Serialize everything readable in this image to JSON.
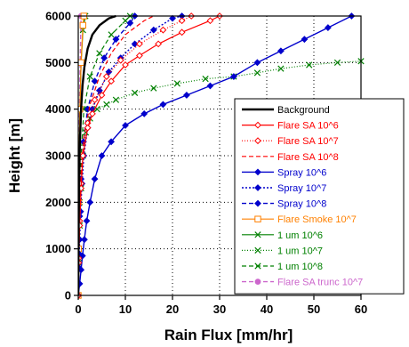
{
  "chart_data": {
    "type": "line",
    "xlabel": "Rain Flux [mm/hr]",
    "ylabel": "Height [m]",
    "xlim": [
      0,
      60
    ],
    "ylim": [
      0,
      6000
    ],
    "x_ticks": [
      "0",
      "10",
      "20",
      "30",
      "40",
      "50",
      "60"
    ],
    "y_ticks": [
      "0",
      "1000",
      "2000",
      "3000",
      "4000",
      "5000",
      "6000"
    ],
    "grid": true,
    "legend_position": "bottom-right",
    "series": [
      {
        "name": "Background",
        "color": "#000000",
        "dash": "solid",
        "marker": "none",
        "width": 2.4,
        "points": [
          [
            0,
            0
          ],
          [
            0.05,
            800
          ],
          [
            0.1,
            1600
          ],
          [
            0.2,
            2500
          ],
          [
            0.35,
            3300
          ],
          [
            0.6,
            4000
          ],
          [
            0.9,
            4500
          ],
          [
            1.3,
            4900
          ],
          [
            2,
            5300
          ],
          [
            3,
            5600
          ],
          [
            4.5,
            5800
          ],
          [
            6.5,
            5950
          ],
          [
            8,
            6000
          ]
        ]
      },
      {
        "name": "Flare SA 10^6",
        "color": "#ff0000",
        "dash": "solid",
        "marker": "diamond-open",
        "width": 1.2,
        "points": [
          [
            0,
            0
          ],
          [
            0.1,
            700
          ],
          [
            0.3,
            1500
          ],
          [
            0.6,
            2300
          ],
          [
            1,
            3000
          ],
          [
            2,
            3600
          ],
          [
            3,
            3900
          ],
          [
            5,
            4300
          ],
          [
            7,
            4600
          ],
          [
            10,
            4950
          ],
          [
            13,
            5150
          ],
          [
            17,
            5400
          ],
          [
            22,
            5650
          ],
          [
            28,
            5900
          ],
          [
            30,
            6000
          ]
        ]
      },
      {
        "name": "Flare SA 10^7",
        "color": "#ff0000",
        "dash": "1,2",
        "marker": "diamond-open",
        "width": 1.2,
        "points": [
          [
            0,
            0
          ],
          [
            0.1,
            800
          ],
          [
            0.3,
            1600
          ],
          [
            0.6,
            2400
          ],
          [
            1,
            3000
          ],
          [
            2,
            3700
          ],
          [
            3.5,
            4200
          ],
          [
            6,
            4700
          ],
          [
            9,
            5050
          ],
          [
            13,
            5400
          ],
          [
            18,
            5700
          ],
          [
            22,
            5900
          ],
          [
            24,
            6000
          ]
        ]
      },
      {
        "name": "Flare SA 10^8",
        "color": "#ff0000",
        "dash": "5,3",
        "marker": "none",
        "width": 1.2,
        "points": [
          [
            0,
            0
          ],
          [
            0.1,
            900
          ],
          [
            0.3,
            1800
          ],
          [
            0.6,
            2600
          ],
          [
            1.2,
            3400
          ],
          [
            2.5,
            4100
          ],
          [
            4.5,
            4700
          ],
          [
            7,
            5200
          ],
          [
            10,
            5600
          ],
          [
            14,
            5900
          ],
          [
            16,
            6000
          ]
        ]
      },
      {
        "name": "Spray 10^6",
        "color": "#0000cc",
        "dash": "solid",
        "marker": "diamond-filled",
        "width": 1.4,
        "points": [
          [
            0,
            0
          ],
          [
            0.3,
            250
          ],
          [
            0.6,
            550
          ],
          [
            0.9,
            850
          ],
          [
            1.3,
            1200
          ],
          [
            1.8,
            1600
          ],
          [
            2.5,
            2000
          ],
          [
            3.5,
            2500
          ],
          [
            5,
            3000
          ],
          [
            7,
            3300
          ],
          [
            10,
            3650
          ],
          [
            14,
            3900
          ],
          [
            18,
            4100
          ],
          [
            23,
            4300
          ],
          [
            28,
            4500
          ],
          [
            33,
            4700
          ],
          [
            38,
            5000
          ],
          [
            43,
            5250
          ],
          [
            48,
            5500
          ],
          [
            53,
            5750
          ],
          [
            58,
            6000
          ]
        ]
      },
      {
        "name": "Spray 10^7",
        "color": "#0000cc",
        "dash": "2,2",
        "marker": "diamond-filled",
        "width": 1.4,
        "points": [
          [
            0,
            0
          ],
          [
            0.1,
            600
          ],
          [
            0.3,
            1200
          ],
          [
            0.5,
            1800
          ],
          [
            0.8,
            2400
          ],
          [
            1.2,
            3000
          ],
          [
            2,
            3600
          ],
          [
            3,
            4000
          ],
          [
            4.5,
            4400
          ],
          [
            6.5,
            4800
          ],
          [
            9,
            5100
          ],
          [
            12,
            5400
          ],
          [
            16,
            5700
          ],
          [
            20,
            5950
          ],
          [
            22,
            6000
          ]
        ]
      },
      {
        "name": "Spray 10^8",
        "color": "#0000cc",
        "dash": "5,3",
        "marker": "diamond-filled",
        "width": 1.4,
        "points": [
          [
            0,
            0
          ],
          [
            0.1,
            900
          ],
          [
            0.3,
            1700
          ],
          [
            0.6,
            2500
          ],
          [
            1.1,
            3300
          ],
          [
            2,
            4000
          ],
          [
            3.5,
            4600
          ],
          [
            5.5,
            5100
          ],
          [
            8,
            5500
          ],
          [
            11,
            5850
          ],
          [
            12,
            6000
          ]
        ]
      },
      {
        "name": "Flare Smoke 10^7",
        "color": "#ff8000",
        "dash": "solid",
        "marker": "square-open",
        "width": 1.2,
        "points": [
          [
            0,
            0
          ],
          [
            0.05,
            1000
          ],
          [
            0.1,
            2000
          ],
          [
            0.2,
            3000
          ],
          [
            0.35,
            4000
          ],
          [
            0.6,
            5000
          ],
          [
            1,
            5800
          ],
          [
            1.2,
            6000
          ]
        ]
      },
      {
        "name": "1 um 10^6",
        "color": "#008000",
        "dash": "solid",
        "marker": "x",
        "width": 1.2,
        "points": [
          [
            0,
            0
          ],
          [
            0.05,
            1000
          ],
          [
            0.1,
            2000
          ],
          [
            0.2,
            3000
          ],
          [
            0.35,
            4000
          ],
          [
            0.6,
            5000
          ],
          [
            1,
            5700
          ],
          [
            1.5,
            6000
          ]
        ]
      },
      {
        "name": "1 um 10^7",
        "color": "#008000",
        "dash": "1,2",
        "marker": "x",
        "width": 1.2,
        "points": [
          [
            0,
            0
          ],
          [
            0.1,
            700
          ],
          [
            0.3,
            1500
          ],
          [
            0.6,
            2300
          ],
          [
            1,
            3000
          ],
          [
            1.6,
            3500
          ],
          [
            2.5,
            3800
          ],
          [
            4,
            4000
          ],
          [
            6,
            4100
          ],
          [
            8,
            4200
          ],
          [
            12,
            4350
          ],
          [
            16,
            4450
          ],
          [
            21,
            4550
          ],
          [
            27,
            4650
          ],
          [
            33,
            4700
          ],
          [
            38,
            4780
          ],
          [
            43,
            4870
          ],
          [
            49,
            4950
          ],
          [
            55,
            5000
          ],
          [
            60,
            5030
          ]
        ]
      },
      {
        "name": "1 um 10^8",
        "color": "#008000",
        "dash": "5,3",
        "marker": "x",
        "width": 1.2,
        "points": [
          [
            0,
            0
          ],
          [
            0.1,
            1000
          ],
          [
            0.3,
            2000
          ],
          [
            0.6,
            3000
          ],
          [
            1.2,
            4000
          ],
          [
            2.5,
            4700
          ],
          [
            4.5,
            5200
          ],
          [
            7,
            5600
          ],
          [
            10,
            5900
          ],
          [
            11,
            6000
          ]
        ]
      },
      {
        "name": "Flare SA trunc 10^7",
        "color": "#cc66cc",
        "dash": "5,3",
        "marker": "circle-filled",
        "width": 1.4,
        "points": [
          [
            0,
            0
          ],
          [
            0.05,
            1000
          ],
          [
            0.1,
            2000
          ],
          [
            0.15,
            3000
          ],
          [
            0.25,
            4000
          ],
          [
            0.4,
            5000
          ],
          [
            0.6,
            6000
          ]
        ]
      }
    ]
  }
}
